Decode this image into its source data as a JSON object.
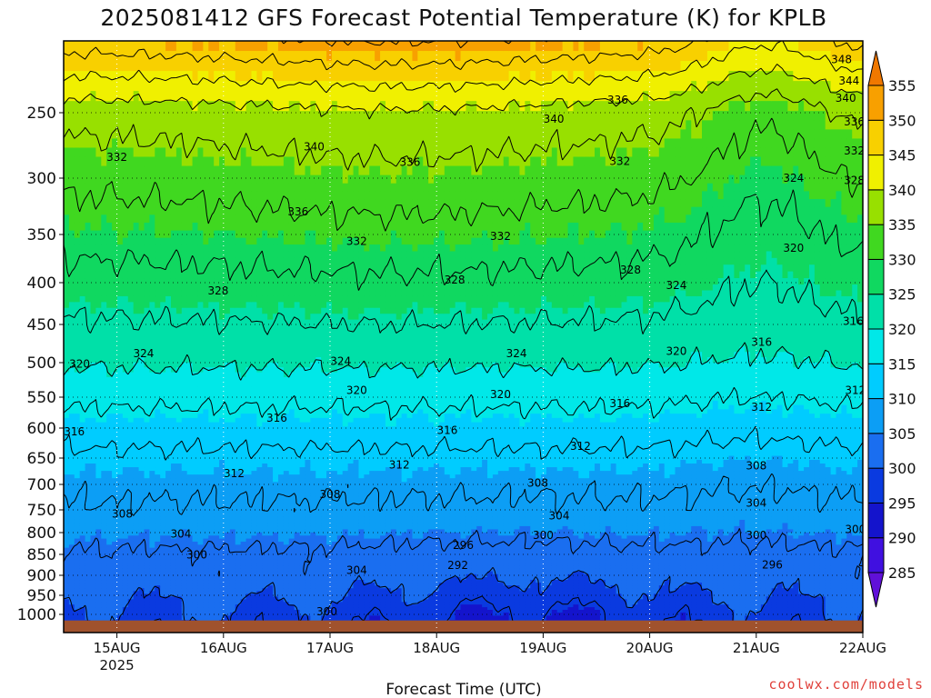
{
  "chart_data": {
    "type": "heatmap",
    "title": "2025081412 GFS Forecast Potential Temperature (K) for KPLB",
    "xlabel": "Forecast Time (UTC)",
    "ylabel": "",
    "x_ticks": [
      {
        "label": "15AUG",
        "sub": "2025",
        "day": 15
      },
      {
        "label": "16AUG",
        "sub": "",
        "day": 16
      },
      {
        "label": "17AUG",
        "sub": "",
        "day": 17
      },
      {
        "label": "18AUG",
        "sub": "",
        "day": 18
      },
      {
        "label": "19AUG",
        "sub": "",
        "day": 19
      },
      {
        "label": "20AUG",
        "sub": "",
        "day": 20
      },
      {
        "label": "21AUG",
        "sub": "",
        "day": 21
      },
      {
        "label": "22AUG",
        "sub": "",
        "day": 22
      }
    ],
    "xlim": [
      14.5,
      22.0
    ],
    "y_axis": "pressure (hPa), reversed",
    "ylim": [
      1030,
      200
    ],
    "y_ticks": [
      250,
      300,
      350,
      400,
      450,
      500,
      550,
      600,
      650,
      700,
      750,
      800,
      850,
      900,
      950,
      1000
    ],
    "grid": "dotted",
    "colorbar": {
      "levels": [
        285,
        290,
        295,
        300,
        305,
        310,
        315,
        320,
        325,
        330,
        335,
        340,
        345,
        350,
        355
      ],
      "colors": [
        "#6010d8",
        "#4010e0",
        "#1414cc",
        "#0a3ae0",
        "#1a6ef0",
        "#0c9ef5",
        "#00ccff",
        "#00e8e8",
        "#00e0a8",
        "#10d860",
        "#40d820",
        "#98e000",
        "#f0f000",
        "#f8d000",
        "#f8a000",
        "#f07800"
      ]
    },
    "contour_levels": [
      288,
      292,
      296,
      300,
      304,
      308,
      312,
      316,
      320,
      324,
      328,
      332,
      336,
      340,
      344,
      348,
      352
    ],
    "surface_color": "#a0522d",
    "contour_labels": [
      {
        "value": "348",
        "day": 21.8,
        "p": 213
      },
      {
        "value": "344",
        "day": 21.87,
        "p": 228
      },
      {
        "value": "340",
        "day": 21.84,
        "p": 240
      },
      {
        "value": "336",
        "day": 21.92,
        "p": 257
      },
      {
        "value": "332",
        "day": 21.92,
        "p": 279
      },
      {
        "value": "328",
        "day": 21.92,
        "p": 302
      },
      {
        "value": "324",
        "day": 22.25,
        "p": 323
      },
      {
        "value": "320",
        "day": 22.21,
        "p": 368
      },
      {
        "value": "316",
        "day": 21.91,
        "p": 446
      },
      {
        "value": "312",
        "day": 21.93,
        "p": 540
      },
      {
        "value": "308",
        "day": 21.94,
        "p": 653
      },
      {
        "value": "304",
        "day": 21.95,
        "p": 723
      },
      {
        "value": "300",
        "day": 21.93,
        "p": 793
      },
      {
        "value": "296",
        "day": 21.96,
        "p": 864
      },
      {
        "value": "340",
        "day": 19.1,
        "p": 255
      },
      {
        "value": "336",
        "day": 19.7,
        "p": 241
      },
      {
        "value": "332",
        "day": 19.72,
        "p": 287
      },
      {
        "value": "328",
        "day": 19.82,
        "p": 387
      },
      {
        "value": "324",
        "day": 20.25,
        "p": 403
      },
      {
        "value": "320",
        "day": 20.25,
        "p": 485
      },
      {
        "value": "316",
        "day": 19.72,
        "p": 560
      },
      {
        "value": "312",
        "day": 19.35,
        "p": 630
      },
      {
        "value": "308",
        "day": 18.95,
        "p": 697
      },
      {
        "value": "304",
        "day": 19.15,
        "p": 763
      },
      {
        "value": "300",
        "day": 19.0,
        "p": 806
      },
      {
        "value": "340",
        "day": 16.85,
        "p": 276
      },
      {
        "value": "336",
        "day": 17.75,
        "p": 288
      },
      {
        "value": "332",
        "day": 18.6,
        "p": 352
      },
      {
        "value": "328",
        "day": 18.17,
        "p": 397
      },
      {
        "value": "324",
        "day": 18.75,
        "p": 488
      },
      {
        "value": "320",
        "day": 18.6,
        "p": 546
      },
      {
        "value": "316",
        "day": 18.1,
        "p": 604
      },
      {
        "value": "312",
        "day": 17.65,
        "p": 663
      },
      {
        "value": "308",
        "day": 17.0,
        "p": 720
      },
      {
        "value": "304",
        "day": 17.25,
        "p": 888
      },
      {
        "value": "300",
        "day": 16.97,
        "p": 993
      },
      {
        "value": "296",
        "day": 18.25,
        "p": 829
      },
      {
        "value": "292",
        "day": 18.2,
        "p": 876
      },
      {
        "value": "336",
        "day": 16.7,
        "p": 330
      },
      {
        "value": "332",
        "day": 17.25,
        "p": 357
      },
      {
        "value": "328",
        "day": 15.95,
        "p": 410
      },
      {
        "value": "324",
        "day": 15.25,
        "p": 488
      },
      {
        "value": "324",
        "day": 17.1,
        "p": 498
      },
      {
        "value": "320",
        "day": 17.25,
        "p": 540
      },
      {
        "value": "316",
        "day": 16.5,
        "p": 584
      },
      {
        "value": "312",
        "day": 16.1,
        "p": 679
      },
      {
        "value": "308",
        "day": 15.05,
        "p": 759
      },
      {
        "value": "304",
        "day": 15.6,
        "p": 803
      },
      {
        "value": "300",
        "day": 15.75,
        "p": 851
      },
      {
        "value": "332",
        "day": 15.0,
        "p": 284
      },
      {
        "value": "320",
        "day": 14.65,
        "p": 502
      },
      {
        "value": "316",
        "day": 14.6,
        "p": 606
      },
      {
        "value": "324",
        "day": 21.35,
        "p": 300
      },
      {
        "value": "320",
        "day": 21.35,
        "p": 364
      },
      {
        "value": "316",
        "day": 21.05,
        "p": 473
      },
      {
        "value": "312",
        "day": 21.05,
        "p": 566
      },
      {
        "value": "308",
        "day": 21.0,
        "p": 665
      },
      {
        "value": "304",
        "day": 21.0,
        "p": 737
      },
      {
        "value": "300",
        "day": 21.0,
        "p": 806
      },
      {
        "value": "296",
        "day": 21.15,
        "p": 875
      }
    ]
  },
  "credit": "coolwx.com/models"
}
